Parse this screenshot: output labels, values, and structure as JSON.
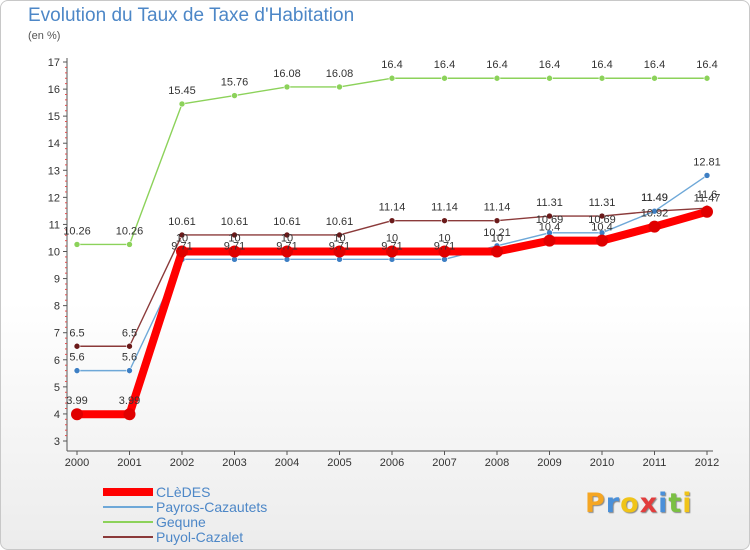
{
  "chart_data": {
    "type": "line",
    "title": "Evolution du Taux de Taxe d'Habitation",
    "ylabel": "(en %)",
    "xlabel": "",
    "ylim": [
      3,
      17
    ],
    "yticks": [
      "3",
      "4",
      "5",
      "6",
      "7",
      "8",
      "9",
      "10",
      "11",
      "12",
      "13",
      "14",
      "15",
      "16",
      "17"
    ],
    "categories": [
      "2000",
      "2001",
      "2002",
      "2003",
      "2004",
      "2005",
      "2006",
      "2007",
      "2008",
      "2009",
      "2010",
      "2011",
      "2012"
    ],
    "grid": false,
    "legend_position": "bottom-left",
    "series": [
      {
        "name": "Gequne",
        "color": "#8cd25a",
        "marker": "#8cd25a",
        "values": [
          10.26,
          10.26,
          15.45,
          15.76,
          16.08,
          16.08,
          16.4,
          16.4,
          16.4,
          16.4,
          16.4,
          16.4,
          16.4
        ],
        "labels": [
          "10.26",
          "10.26",
          "15.45",
          "15.76",
          "16.08",
          "16.08",
          "16.4",
          "16.4",
          "16.4",
          "16.4",
          "16.4",
          "16.4",
          "16.4"
        ]
      },
      {
        "name": "Puyol-Cazalet",
        "color": "#8b3a3a",
        "marker": "#6b1a1a",
        "values": [
          6.5,
          6.5,
          10.61,
          10.61,
          10.61,
          10.61,
          11.14,
          11.14,
          11.14,
          11.31,
          11.31,
          11.49,
          11.6
        ],
        "labels": [
          "6.5",
          "6.5",
          "10.61",
          "10.61",
          "10.61",
          "10.61",
          "11.14",
          "11.14",
          "11.14",
          "11.31",
          "11.31",
          "11.49",
          "11.6"
        ]
      },
      {
        "name": "Payros-Cazautets",
        "color": "#6ea8d8",
        "marker": "#3d7fc4",
        "values": [
          5.6,
          5.6,
          9.71,
          9.71,
          9.71,
          9.71,
          9.71,
          9.71,
          10.21,
          10.69,
          10.69,
          11.49,
          12.81
        ],
        "labels": [
          "5.6",
          "5.6",
          "9.71",
          "9.71",
          "9.71",
          "9.71",
          "9.71",
          "9.71",
          "10.21",
          "10.69",
          "10.69",
          "11.49",
          "12.81"
        ]
      },
      {
        "name": "CLèDES",
        "color": "#ff0000",
        "marker": "#e00000",
        "values": [
          3.99,
          3.99,
          10,
          10,
          10,
          10,
          10,
          10,
          10,
          10.4,
          10.4,
          10.92,
          11.47
        ],
        "labels": [
          "3.99",
          "3.99",
          "10",
          "10",
          "10",
          "10",
          "10",
          "10",
          "10",
          "10.4",
          "10.4",
          "10.92",
          "11.47"
        ]
      }
    ]
  },
  "legend": [
    {
      "name": "CLèDES",
      "color": "#ff0000"
    },
    {
      "name": "Payros-Cazautets",
      "color": "#6ea8d8"
    },
    {
      "name": "Gequne",
      "color": "#8cd25a"
    },
    {
      "name": "Puyol-Cazalet",
      "color": "#8b3a3a"
    }
  ],
  "brand": {
    "letters": [
      "P",
      "r",
      "o",
      "x",
      "i",
      "t",
      "i"
    ],
    "colors": [
      "#f5a623",
      "#4a90d9",
      "#f0c419",
      "#e23d3d",
      "#4a90d9",
      "#7bc043",
      "#f0c419"
    ]
  }
}
